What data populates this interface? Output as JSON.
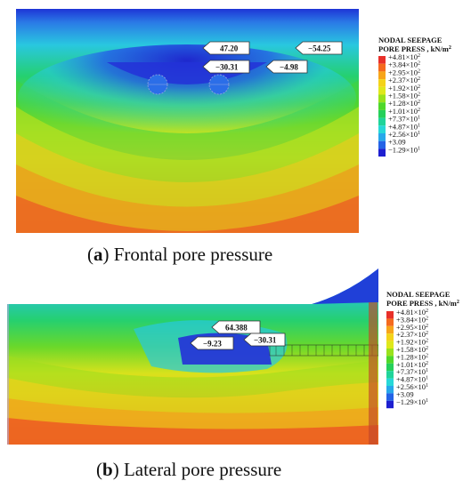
{
  "legend": {
    "title_line1": "NODAL SEEPAGE",
    "title_line2": "PORE PRESS , kN/m",
    "title_exp": "2",
    "entries": [
      {
        "sign": "+",
        "mant": "4.81",
        "exp": "2",
        "color": "#e8302a"
      },
      {
        "sign": "+",
        "mant": "3.84",
        "exp": "2",
        "color": "#f56a1e"
      },
      {
        "sign": "+",
        "mant": "2.95",
        "exp": "2",
        "color": "#f7a51a"
      },
      {
        "sign": "+",
        "mant": "2.37",
        "exp": "2",
        "color": "#f4d31a"
      },
      {
        "sign": "+",
        "mant": "1.92",
        "exp": "2",
        "color": "#dfe81c"
      },
      {
        "sign": "+",
        "mant": "1.58",
        "exp": "2",
        "color": "#9ae21c"
      },
      {
        "sign": "+",
        "mant": "1.28",
        "exp": "2",
        "color": "#4fd82a"
      },
      {
        "sign": "+",
        "mant": "1.01",
        "exp": "2",
        "color": "#25d05a"
      },
      {
        "sign": "+",
        "mant": "7.37",
        "exp": "1",
        "color": "#20d49a"
      },
      {
        "sign": "+",
        "mant": "4.87",
        "exp": "1",
        "color": "#27d8d8"
      },
      {
        "sign": "+",
        "mant": "2.56",
        "exp": "1",
        "color": "#27a8ea"
      },
      {
        "sign": "+",
        "mant": "3.09",
        "exp": "",
        "color": "#2463e6"
      },
      {
        "sign": "−",
        "mant": "1.29",
        "exp": "1",
        "color": "#1e1fd0"
      }
    ]
  },
  "panel_a": {
    "caption_label": "a",
    "caption_text": "Frontal pore pressure",
    "callouts": [
      {
        "id": "a1",
        "text": "47.20"
      },
      {
        "id": "a2",
        "text": "−54.25"
      },
      {
        "id": "a3",
        "text": "−30.31"
      },
      {
        "id": "a4",
        "text": "−4.98"
      }
    ]
  },
  "panel_b": {
    "caption_label": "b",
    "caption_text": "Lateral pore pressure",
    "callouts": [
      {
        "id": "b1",
        "text": "64.388"
      },
      {
        "id": "b2",
        "text": "−9.23"
      },
      {
        "id": "b3",
        "text": "−30.31"
      }
    ]
  }
}
